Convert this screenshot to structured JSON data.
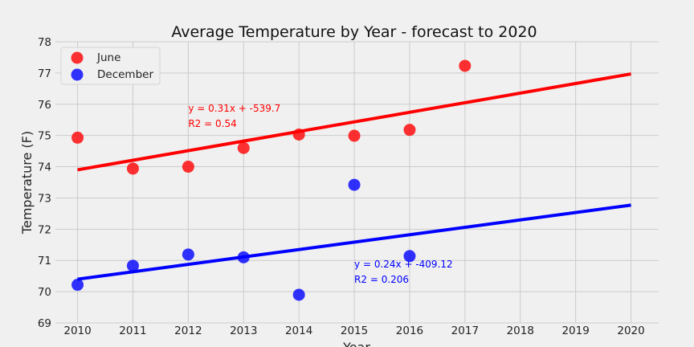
{
  "chart_data": {
    "type": "scatter",
    "title": "Average Temperature by Year - forecast to 2020",
    "xlabel": "Year",
    "ylabel": "Temperature (F)",
    "xlim": [
      2009.6,
      2020.5
    ],
    "ylim": [
      69,
      78
    ],
    "xticks": [
      2010,
      2011,
      2012,
      2013,
      2014,
      2015,
      2016,
      2017,
      2018,
      2019,
      2020
    ],
    "yticks": [
      69,
      70,
      71,
      72,
      73,
      74,
      75,
      76,
      77,
      78
    ],
    "grid": true,
    "legend_position": "top-left",
    "series": [
      {
        "name": "June",
        "color": "#ff0000",
        "x": [
          2010,
          2011,
          2012,
          2013,
          2014,
          2015,
          2016,
          2017
        ],
        "y": [
          74.93,
          73.94,
          74.0,
          74.6,
          75.03,
          74.99,
          75.18,
          77.23
        ],
        "trend": {
          "x": [
            2010,
            2020
          ],
          "y": [
            73.9,
            76.97
          ]
        },
        "annotation": {
          "equation": "y = 0.31x + -539.7",
          "r2": "R2 = 0.54",
          "anchor_x": 2012,
          "anchor_y": 75.4
        }
      },
      {
        "name": "December",
        "color": "#0000ff",
        "x": [
          2010,
          2011,
          2012,
          2013,
          2014,
          2015,
          2016
        ],
        "y": [
          70.22,
          70.83,
          71.19,
          71.1,
          69.9,
          73.42,
          71.14
        ],
        "trend": {
          "x": [
            2010,
            2020
          ],
          "y": [
            70.4,
            72.77
          ]
        },
        "annotation": {
          "equation": "y = 0.24x + -409.12",
          "r2": "R2 = 0.206",
          "anchor_x": 2015,
          "anchor_y": 70.42
        }
      }
    ]
  }
}
